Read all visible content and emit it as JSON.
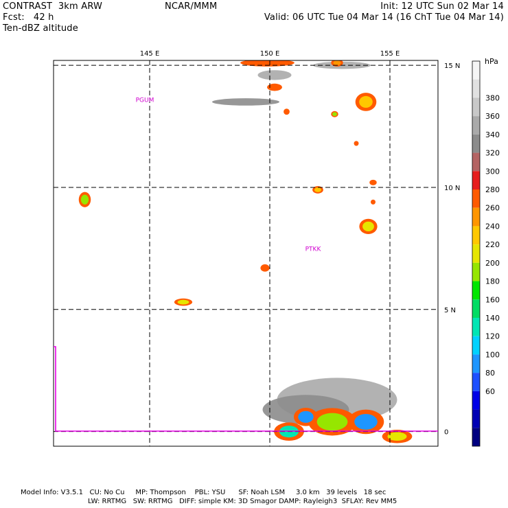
{
  "header": {
    "model": "CONTRAST  3km ARW",
    "fcst": "Fcst:   42 h",
    "field": "Ten-dBZ altitude",
    "center": "NCAR/MMM",
    "init": "Init: 12 UTC Sun 02 Mar 14",
    "valid": "Valid: 06 UTC Tue 04 Mar 14 (16 ChT Tue 04 Mar 14)"
  },
  "footer": {
    "line1": "Model Info: V3.5.1   CU: No Cu     MP: Thompson    PBL: YSU      SF: Noah LSM     3.0 km   39 levels   18 sec",
    "line2": "LW: RRTMG   SW: RRTMG   DIFF: simple KM: 3D Smagor DAMP: Rayleigh3  SFLAY: Rev MM5"
  },
  "chart_data": {
    "type": "heatmap",
    "title": "Ten-dBZ altitude",
    "x_ticks": [
      {
        "value": 145,
        "label": "145 E"
      },
      {
        "value": 150,
        "label": "150 E"
      },
      {
        "value": 155,
        "label": "155 E"
      }
    ],
    "y_ticks": [
      {
        "value": 15,
        "label": "15 N"
      },
      {
        "value": 10,
        "label": "10 N"
      },
      {
        "value": 5,
        "label": "5 N"
      },
      {
        "value": 0,
        "label": "0"
      }
    ],
    "xlim": [
      141.0,
      157.0
    ],
    "ylim": [
      -0.6,
      15.2
    ],
    "stations": [
      {
        "name": "PGUM",
        "lon": 144.8,
        "lat": 13.5
      },
      {
        "name": "PTKK",
        "lon": 151.8,
        "lat": 7.4
      }
    ],
    "colorbar": {
      "unit": "hPa",
      "levels": [
        60,
        80,
        100,
        120,
        140,
        160,
        180,
        200,
        220,
        240,
        260,
        280,
        300,
        320,
        340,
        360,
        380
      ],
      "colors": [
        "#000080",
        "#0000b4",
        "#0000e6",
        "#1e50ff",
        "#1e96ff",
        "#00d2ff",
        "#00e6b4",
        "#00dc64",
        "#00e600",
        "#96e600",
        "#e6e600",
        "#ffc800",
        "#ff9600",
        "#ff5a00",
        "#e61e1e",
        "#b46464",
        "#8c8c8c",
        "#aaaaaa",
        "#c8c8c8",
        "#e1e1e1",
        "#f5f5f5"
      ]
    },
    "echoes": [
      {
        "lon": 149.9,
        "lat": 15.1,
        "rx": 0.9,
        "ry": 0.12,
        "hPa": 300
      },
      {
        "lon": 152.8,
        "lat": 15.1,
        "rx": 0.2,
        "ry": 0.12,
        "hPa": 280
      },
      {
        "lon": 154.0,
        "lat": 13.5,
        "rx": 0.35,
        "ry": 0.3,
        "hPa": 260
      },
      {
        "lon": 150.2,
        "lat": 14.1,
        "rx": 0.25,
        "ry": 0.12,
        "hPa": 300
      },
      {
        "lon": 150.7,
        "lat": 13.1,
        "rx": 0.1,
        "ry": 0.1,
        "hPa": 300
      },
      {
        "lon": 152.7,
        "lat": 13.0,
        "rx": 0.12,
        "ry": 0.1,
        "hPa": 220
      },
      {
        "lon": 153.6,
        "lat": 11.8,
        "rx": 0.08,
        "ry": 0.08,
        "hPa": 300
      },
      {
        "lon": 154.3,
        "lat": 10.2,
        "rx": 0.12,
        "ry": 0.09,
        "hPa": 300
      },
      {
        "lon": 152.0,
        "lat": 9.9,
        "rx": 0.18,
        "ry": 0.12,
        "hPa": 260
      },
      {
        "lon": 154.3,
        "lat": 9.4,
        "rx": 0.08,
        "ry": 0.08,
        "hPa": 300
      },
      {
        "lon": 154.1,
        "lat": 8.4,
        "rx": 0.3,
        "ry": 0.25,
        "hPa": 240
      },
      {
        "lon": 142.3,
        "lat": 9.5,
        "rx": 0.2,
        "ry": 0.25,
        "hPa": 220
      },
      {
        "lon": 149.8,
        "lat": 6.7,
        "rx": 0.15,
        "ry": 0.12,
        "hPa": 300
      },
      {
        "lon": 146.4,
        "lat": 5.3,
        "rx": 0.3,
        "ry": 0.12,
        "hPa": 240
      },
      {
        "lon": 150.8,
        "lat": 0.0,
        "rx": 0.5,
        "ry": 0.3,
        "hPa": 160
      },
      {
        "lon": 152.6,
        "lat": 0.4,
        "rx": 0.8,
        "ry": 0.45,
        "hPa": 220
      },
      {
        "lon": 154.0,
        "lat": 0.4,
        "rx": 0.6,
        "ry": 0.4,
        "hPa": 120
      },
      {
        "lon": 155.3,
        "lat": -0.2,
        "rx": 0.5,
        "ry": 0.22,
        "hPa": 240
      },
      {
        "lon": 151.5,
        "lat": 0.6,
        "rx": 0.4,
        "ry": 0.3,
        "hPa": 120
      }
    ],
    "high_cloud": [
      {
        "lon": 150.2,
        "lat": 14.6,
        "rx": 0.7,
        "ry": 0.2,
        "hPa": 380
      },
      {
        "lon": 149.0,
        "lat": 13.5,
        "rx": 1.4,
        "ry": 0.15,
        "hPa": 360
      },
      {
        "lon": 153.0,
        "lat": 15.0,
        "rx": 1.2,
        "ry": 0.15,
        "hPa": 380
      },
      {
        "lon": 152.8,
        "lat": 1.3,
        "rx": 2.5,
        "ry": 0.9,
        "hPa": 380
      },
      {
        "lon": 151.5,
        "lat": 0.9,
        "rx": 1.8,
        "ry": 0.6,
        "hPa": 360
      }
    ]
  }
}
